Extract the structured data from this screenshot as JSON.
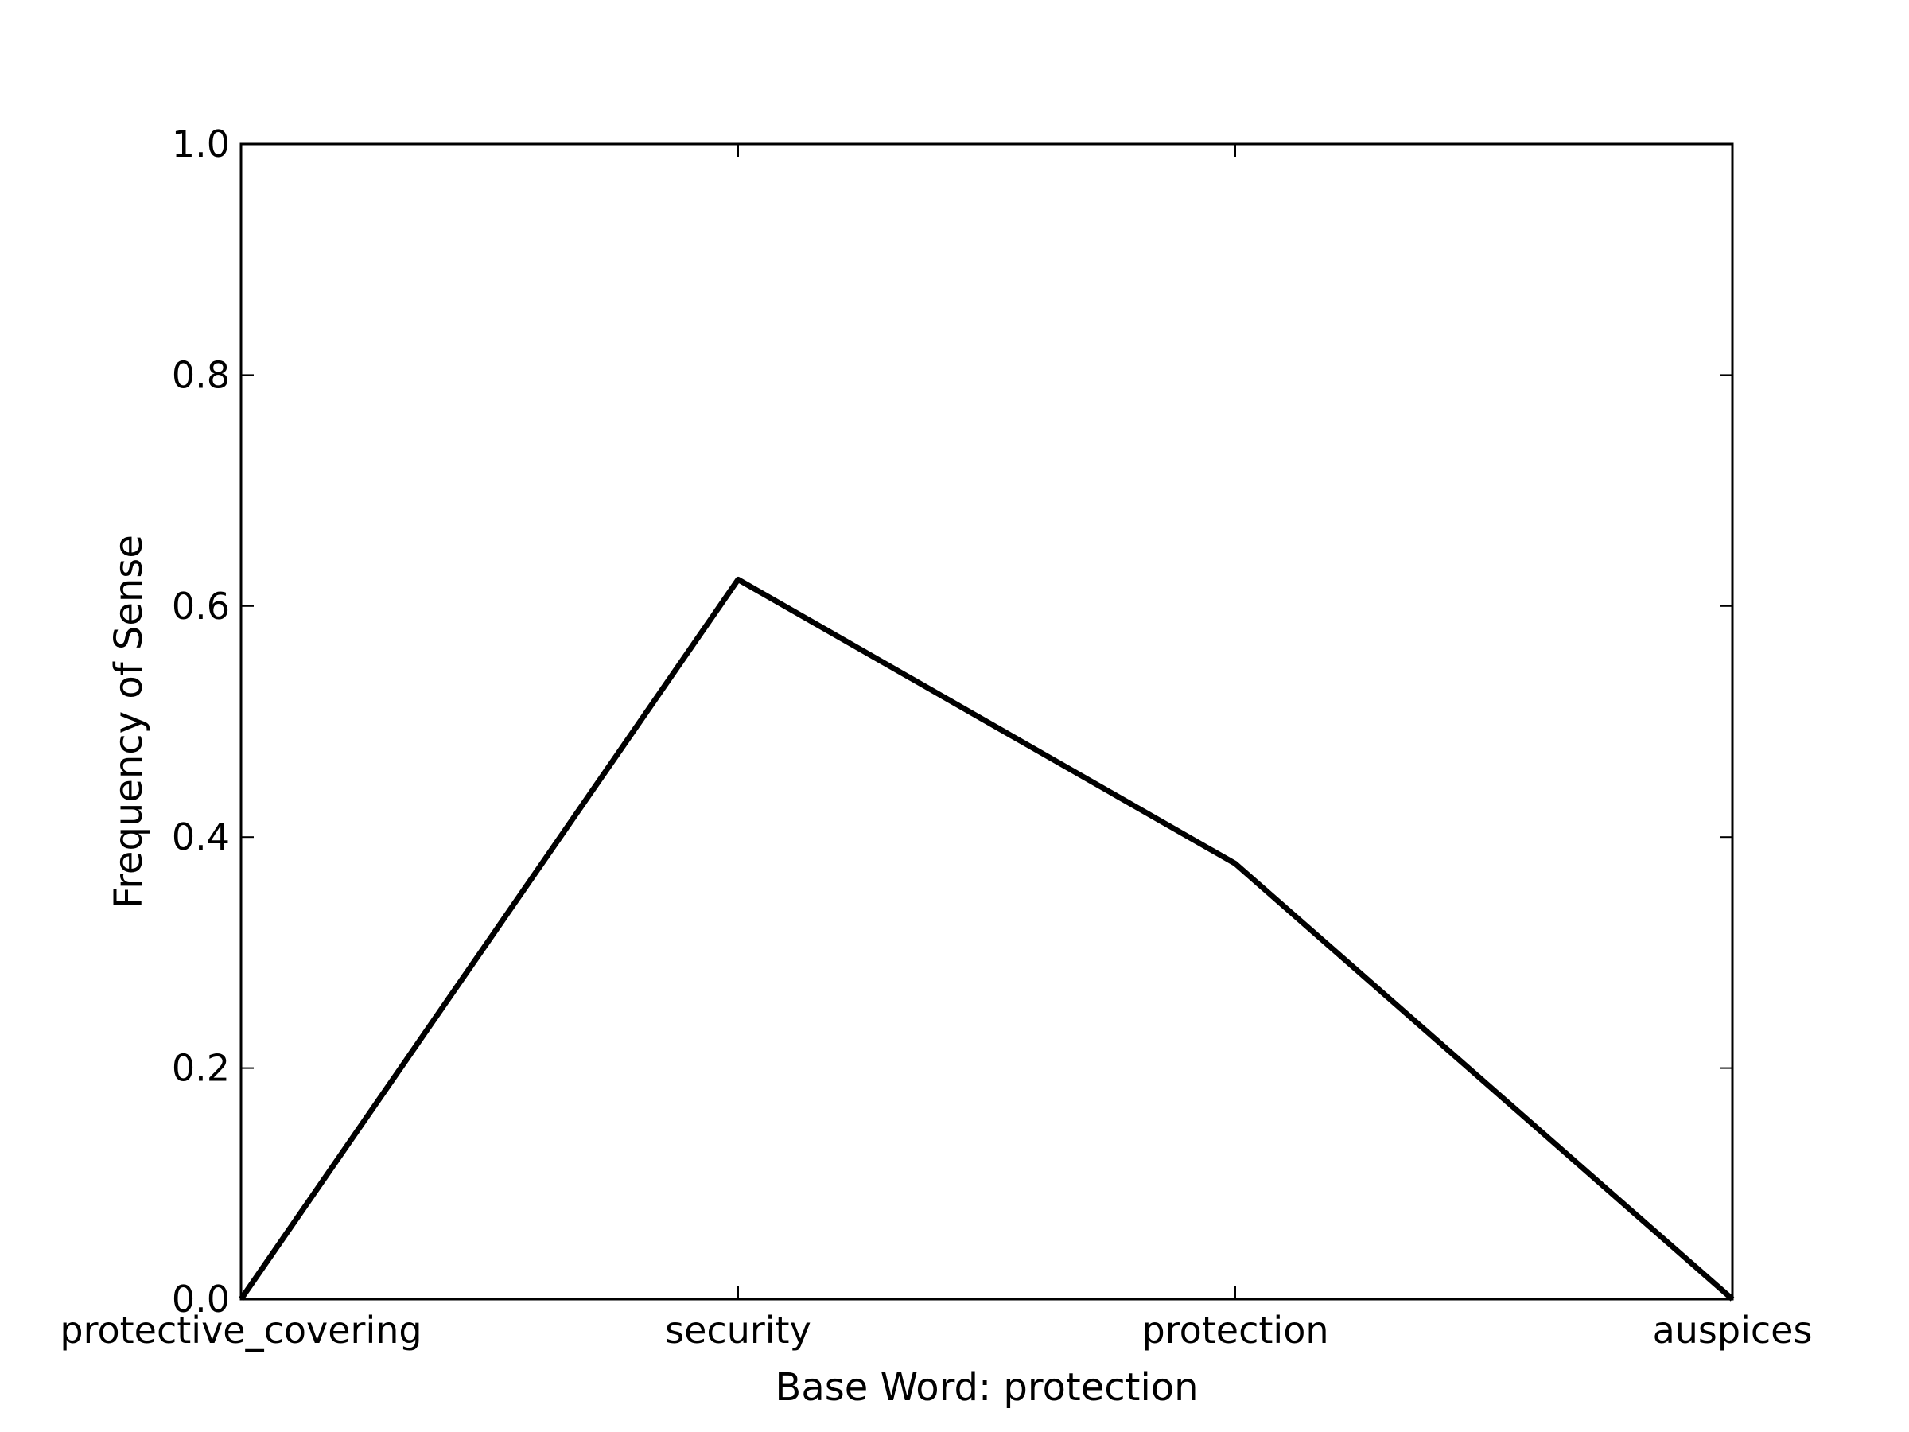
{
  "chart_data": {
    "type": "line",
    "title": "",
    "xlabel": "Base Word: protection",
    "ylabel": "Frequency of Sense",
    "categories": [
      "protective_covering",
      "security",
      "protection",
      "auspices"
    ],
    "series": [
      {
        "values": [
          0.0,
          0.623,
          0.377,
          0.0
        ]
      }
    ],
    "ylim": [
      0,
      1.0
    ],
    "yticks": [
      "0.0",
      "0.2",
      "0.4",
      "0.6",
      "0.8",
      "1.0"
    ],
    "grid": false,
    "line_color": "#000000"
  }
}
